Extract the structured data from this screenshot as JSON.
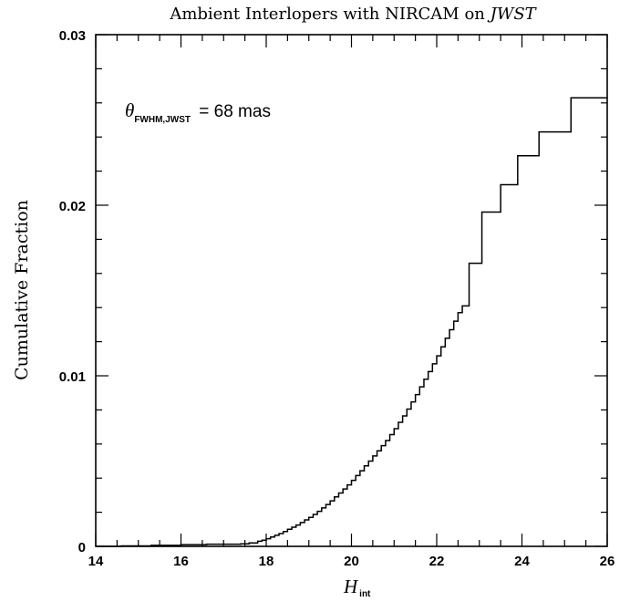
{
  "chart_data": {
    "type": "line",
    "step": true,
    "title_main": "Ambient Interlopers with NIRCAM on ",
    "title_italic": "JWST",
    "xlabel_main": "H",
    "xlabel_sub": "int",
    "ylabel": "Cumulative Fraction",
    "xlim": [
      14,
      26
    ],
    "ylim": [
      0,
      0.03
    ],
    "x_ticks": [
      14,
      16,
      18,
      20,
      22,
      24,
      26
    ],
    "x_tick_labels": [
      "14",
      "16",
      "18",
      "20",
      "22",
      "24",
      "26"
    ],
    "y_ticks": [
      0,
      0.01,
      0.02,
      0.03
    ],
    "y_tick_labels": [
      "0",
      "0.01",
      "0.02",
      "0.03"
    ],
    "annotation": {
      "symbol": "θ",
      "subscript": "FWHM,JWST",
      "text": " = 68 mas"
    },
    "series": [
      {
        "x": [
          14.0,
          14.6,
          15.3,
          16.0,
          16.6,
          17.4,
          17.6,
          17.8,
          17.9,
          18.0,
          18.1,
          18.2,
          18.3,
          18.4,
          18.5,
          18.6,
          18.7,
          18.8,
          18.9,
          19.0,
          19.1,
          19.2,
          19.3,
          19.4,
          19.5,
          19.6,
          19.7,
          19.8,
          19.9,
          20.0,
          20.1,
          20.2,
          20.3,
          20.4,
          20.5,
          20.6,
          20.7,
          20.8,
          20.9,
          21.0,
          21.1,
          21.2,
          21.3,
          21.4,
          21.5,
          21.6,
          21.7,
          21.8,
          21.9,
          22.0,
          22.1,
          22.2,
          22.3,
          22.4,
          22.5,
          22.6,
          22.76,
          23.06,
          23.5,
          23.9,
          24.4,
          25.15,
          26.0
        ],
        "y": [
          0.0,
          3e-05,
          6e-05,
          0.0001,
          0.00013,
          0.00015,
          0.0002,
          0.0003,
          0.00036,
          0.00045,
          0.00055,
          0.00065,
          0.00075,
          0.00087,
          0.001,
          0.00112,
          0.00125,
          0.0014,
          0.00155,
          0.0017,
          0.00187,
          0.00205,
          0.00225,
          0.00245,
          0.00267,
          0.0029,
          0.00313,
          0.00336,
          0.0036,
          0.00387,
          0.00415,
          0.00443,
          0.00472,
          0.005,
          0.0053,
          0.0056,
          0.0059,
          0.0062,
          0.00655,
          0.0069,
          0.00727,
          0.00765,
          0.00805,
          0.00847,
          0.0089,
          0.00935,
          0.0098,
          0.01025,
          0.0107,
          0.01117,
          0.0117,
          0.0122,
          0.0127,
          0.0132,
          0.0137,
          0.0141,
          0.0166,
          0.0196,
          0.0212,
          0.0229,
          0.0243,
          0.0263,
          0.0263
        ]
      }
    ]
  }
}
